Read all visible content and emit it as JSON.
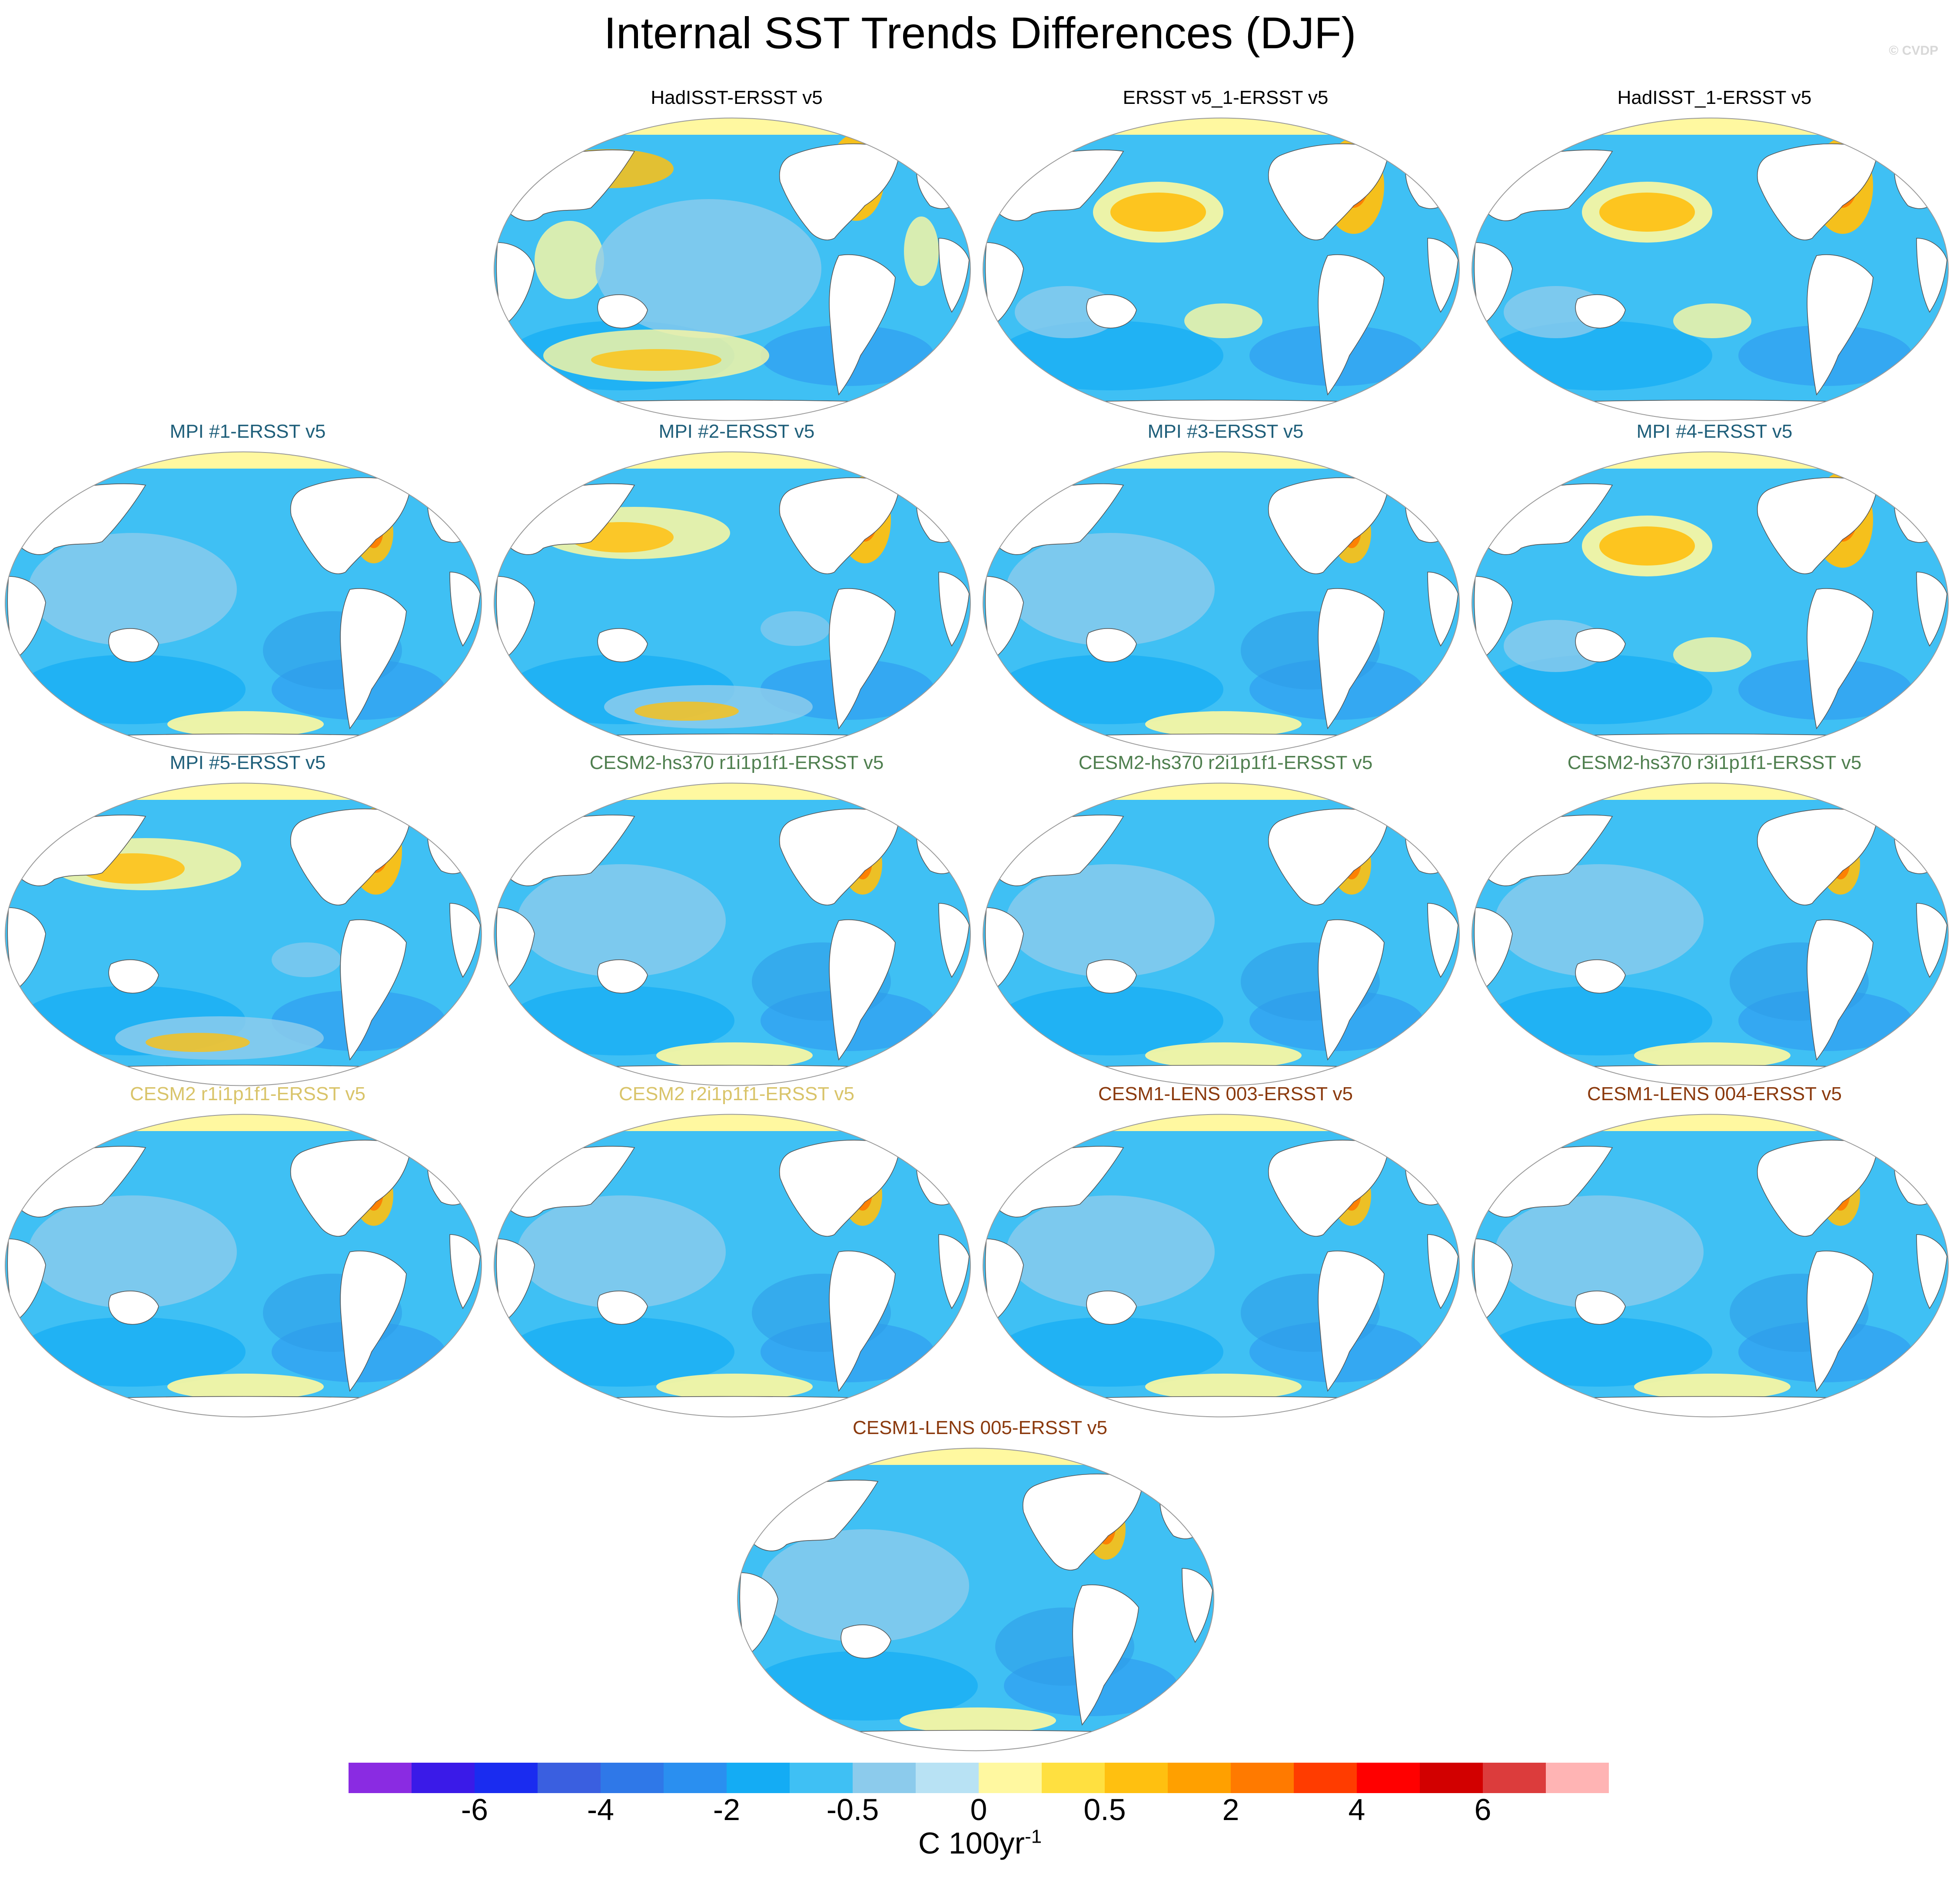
{
  "title": "Internal SST Trends Differences (DJF)",
  "credit": "© CVDP",
  "panels": [
    {
      "title": "HadISST-ERSST v5",
      "title_color": "#000000",
      "pattern": "noisy"
    },
    {
      "title": "ERSST v5_1-ERSST v5",
      "title_color": "#000000",
      "pattern": "warm-north"
    },
    {
      "title": "HadISST_1-ERSST v5",
      "title_color": "#000000",
      "pattern": "warm-north"
    },
    {
      "title": "MPI #1-ERSST v5",
      "title_color": "#1f5f7a",
      "pattern": "cool"
    },
    {
      "title": "MPI #2-ERSST v5",
      "title_color": "#1f5f7a",
      "pattern": "mixed"
    },
    {
      "title": "MPI #3-ERSST v5",
      "title_color": "#1f5f7a",
      "pattern": "cool"
    },
    {
      "title": "MPI #4-ERSST v5",
      "title_color": "#1f5f7a",
      "pattern": "warm-north"
    },
    {
      "title": "MPI #5-ERSST v5",
      "title_color": "#1f5f7a",
      "pattern": "mixed"
    },
    {
      "title": "CESM2-hs370 r1i1p1f1-ERSST v5",
      "title_color": "#4f7f4f",
      "pattern": "cool"
    },
    {
      "title": "CESM2-hs370 r2i1p1f1-ERSST v5",
      "title_color": "#4f7f4f",
      "pattern": "cool"
    },
    {
      "title": "CESM2-hs370 r3i1p1f1-ERSST v5",
      "title_color": "#4f7f4f",
      "pattern": "cool"
    },
    {
      "title": "CESM2 r1i1p1f1-ERSST v5",
      "title_color": "#d9c46a",
      "pattern": "cool"
    },
    {
      "title": "CESM2 r2i1p1f1-ERSST v5",
      "title_color": "#d9c46a",
      "pattern": "cool"
    },
    {
      "title": "CESM1-LENS 003-ERSST v5",
      "title_color": "#8b3a0e",
      "pattern": "cool"
    },
    {
      "title": "CESM1-LENS 004-ERSST v5",
      "title_color": "#8b3a0e",
      "pattern": "cool"
    },
    {
      "title": "CESM1-LENS 005-ERSST v5",
      "title_color": "#8b3a0e",
      "pattern": "cool"
    }
  ],
  "colorbar": {
    "colors": [
      "#8a2be2",
      "#3a1ae8",
      "#1a2cf0",
      "#3a5fe0",
      "#2f78e8",
      "#2a8ff0",
      "#14acf4",
      "#3fc0f4",
      "#8ccbec",
      "#b8e2f4",
      "#fff8a0",
      "#ffe040",
      "#ffc010",
      "#ffa000",
      "#ff7a00",
      "#ff3c00",
      "#ff0000",
      "#d20000",
      "#dc3c3c",
      "#ffb4b4"
    ],
    "tick_labels": [
      "-6",
      "-4",
      "-2",
      "-0.5",
      "0",
      "0.5",
      "2",
      "4",
      "6"
    ],
    "units": "C 100yr",
    "units_exponent": "-1"
  }
}
